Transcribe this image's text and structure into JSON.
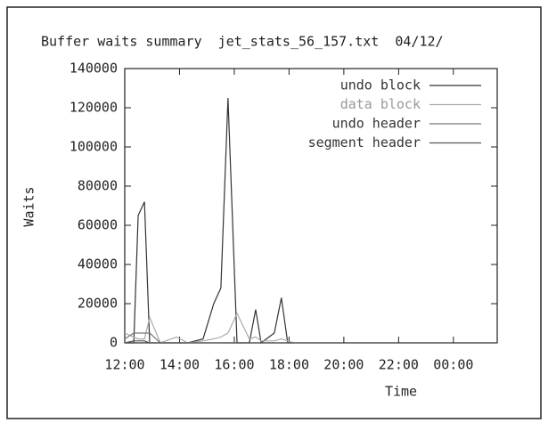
{
  "chart_data": {
    "type": "line",
    "title": "Buffer waits summary  jet_stats_56_157.txt  04/12/",
    "x_label": "Time",
    "y_label": "Waits",
    "xlim": [
      12,
      25.6
    ],
    "xticks": [
      {
        "value": 12,
        "label": "12:00"
      },
      {
        "value": 14,
        "label": "14:00"
      },
      {
        "value": 16,
        "label": "16:00"
      },
      {
        "value": 18,
        "label": "18:00"
      },
      {
        "value": 20,
        "label": "20:00"
      },
      {
        "value": 22,
        "label": "22:00"
      },
      {
        "value": 24,
        "label": "00:00"
      }
    ],
    "ylim": [
      0,
      140000
    ],
    "yticks": [
      0,
      20000,
      40000,
      60000,
      80000,
      100000,
      120000,
      140000
    ],
    "legend": "top-right",
    "x": [
      12.0,
      12.33,
      12.49,
      12.72,
      12.91,
      13.3,
      13.9,
      14.3,
      14.86,
      15.25,
      15.51,
      15.77,
      16.1,
      16.55,
      16.78,
      16.98,
      17.46,
      17.72,
      17.95,
      18.18
    ],
    "series": [
      {
        "name": "undo block",
        "color": "#333333",
        "values": [
          0,
          0,
          65000,
          72000,
          0,
          0,
          0,
          0,
          2000,
          20000,
          28000,
          125000,
          0,
          0,
          17000,
          0,
          5000,
          23000,
          0,
          0
        ]
      },
      {
        "name": "data block",
        "color": "#aaaaaa",
        "values": [
          5000,
          3000,
          2000,
          2000,
          13000,
          0,
          3000,
          0,
          1000,
          2000,
          3000,
          5000,
          15000,
          2000,
          3000,
          1000,
          1000,
          2000,
          1000,
          0
        ]
      },
      {
        "name": "undo header",
        "color": "#777777",
        "values": [
          2000,
          5000,
          5000,
          5000,
          5000,
          0,
          0,
          0,
          0,
          0,
          0,
          0,
          0,
          0,
          0,
          0,
          0,
          0,
          0,
          0
        ]
      },
      {
        "name": "segment header",
        "color": "#555555",
        "values": [
          0,
          1000,
          1000,
          1000,
          0,
          0,
          0,
          0,
          0,
          0,
          0,
          0,
          0,
          0,
          0,
          0,
          0,
          0,
          0,
          0
        ]
      }
    ]
  }
}
